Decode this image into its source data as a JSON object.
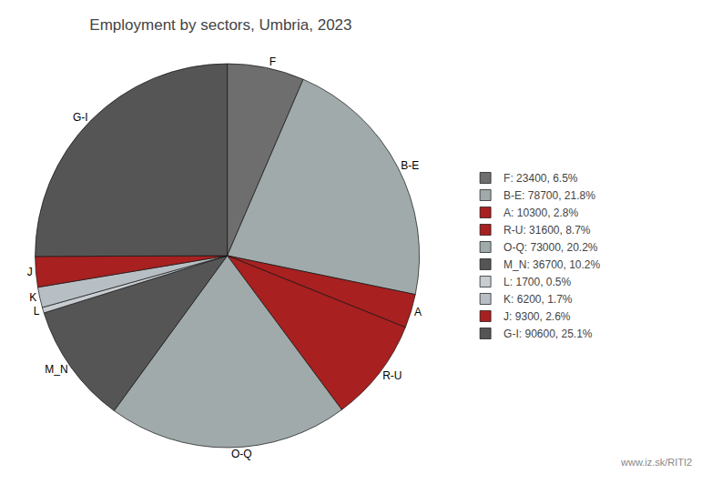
{
  "chart_data": {
    "type": "pie",
    "title": "Employment by sectors, Umbria, 2023",
    "categories": [
      "F",
      "B-E",
      "A",
      "R-U",
      "O-Q",
      "M_N",
      "L",
      "K",
      "J",
      "G-I"
    ],
    "values": [
      23400,
      78700,
      10300,
      31600,
      73000,
      36700,
      1700,
      6200,
      9300,
      90600
    ],
    "colors": [
      "#6E6E6E",
      "#A0AAAA",
      "#A82020",
      "#A82020",
      "#A0AAAA",
      "#555555",
      "#C8CDD2",
      "#B8BFC4",
      "#A82020",
      "#555555"
    ],
    "legend_labels": [
      "F: 23400, 6.5%",
      "B-E: 78700, 21.8%",
      "A: 10300, 2.8%",
      "R-U: 31600, 8.7%",
      "O-Q: 73000, 20.2%",
      "M_N: 36700, 10.2%",
      "L: 1700, 0.5%",
      "K: 6200, 1.7%",
      "J: 9300, 2.6%",
      "G-I: 90600, 25.1%"
    ],
    "legend": "right",
    "annotations": [
      "www.iz.sk/RITI2"
    ]
  }
}
